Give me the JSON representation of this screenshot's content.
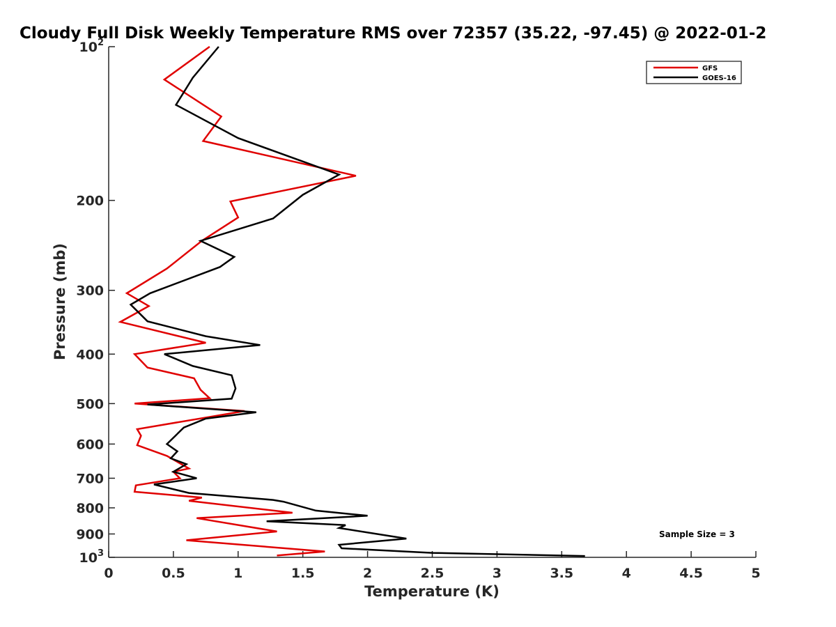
{
  "chart_data": {
    "type": "line",
    "title": "Cloudy Full Disk Weekly Temperature RMS over 72357 (35.22, -97.45) @ 2022-01-2",
    "xlabel": "Temperature (K)",
    "ylabel": "Pressure (mb)",
    "xlim": [
      0,
      5
    ],
    "ylim": [
      100,
      1000
    ],
    "y_scale": "log",
    "y_reversed": true,
    "x_ticks": [
      0,
      0.5,
      1,
      1.5,
      2,
      2.5,
      3,
      3.5,
      4,
      4.5,
      5
    ],
    "x_tick_labels": [
      "0",
      "0.5",
      "1",
      "1.5",
      "2",
      "2.5",
      "3",
      "3.5",
      "4",
      "4.5",
      "5"
    ],
    "y_ticks": [
      {
        "value": 100,
        "base": "10",
        "exp": "2"
      },
      {
        "value": 200,
        "base": "200",
        "exp": ""
      },
      {
        "value": 300,
        "base": "300",
        "exp": ""
      },
      {
        "value": 400,
        "base": "400",
        "exp": ""
      },
      {
        "value": 500,
        "base": "500",
        "exp": ""
      },
      {
        "value": 600,
        "base": "600",
        "exp": ""
      },
      {
        "value": 700,
        "base": "700",
        "exp": ""
      },
      {
        "value": 800,
        "base": "800",
        "exp": ""
      },
      {
        "value": 900,
        "base": "900",
        "exp": ""
      },
      {
        "value": 1000,
        "base": "10",
        "exp": "3"
      }
    ],
    "grid": false,
    "legend_position": "top-right",
    "annotation": "Sample Size = 3",
    "series": [
      {
        "name": "GFS",
        "color": "#e00000",
        "points": [
          [
            0.78,
            100
          ],
          [
            0.43,
            116
          ],
          [
            0.87,
            137
          ],
          [
            0.73,
            153
          ],
          [
            1.91,
            179
          ],
          [
            0.94,
            201
          ],
          [
            1.0,
            216
          ],
          [
            0.72,
            240
          ],
          [
            0.45,
            272
          ],
          [
            0.14,
            304
          ],
          [
            0.31,
            322
          ],
          [
            0.09,
            346
          ],
          [
            0.75,
            380
          ],
          [
            0.2,
            400
          ],
          [
            0.3,
            425
          ],
          [
            0.66,
            446
          ],
          [
            0.71,
            470
          ],
          [
            0.78,
            488
          ],
          [
            0.2,
            500
          ],
          [
            1.05,
            517
          ],
          [
            0.22,
            561
          ],
          [
            0.25,
            578
          ],
          [
            0.22,
            603
          ],
          [
            0.45,
            633
          ],
          [
            0.62,
            670
          ],
          [
            0.5,
            680
          ],
          [
            0.55,
            700
          ],
          [
            0.21,
            723
          ],
          [
            0.2,
            744
          ],
          [
            0.72,
            764
          ],
          [
            0.62,
            775
          ],
          [
            1.42,
            818
          ],
          [
            0.68,
            838
          ],
          [
            1.3,
            890
          ],
          [
            0.6,
            926
          ],
          [
            1.67,
            974
          ],
          [
            1.3,
            992
          ]
        ]
      },
      {
        "name": "GOES-16",
        "color": "#000000",
        "points": [
          [
            0.85,
            100
          ],
          [
            0.65,
            115
          ],
          [
            0.52,
            130
          ],
          [
            1.0,
            151
          ],
          [
            1.78,
            178
          ],
          [
            1.5,
            195
          ],
          [
            1.27,
            217
          ],
          [
            0.71,
            240
          ],
          [
            0.97,
            258
          ],
          [
            0.86,
            270
          ],
          [
            0.32,
            304
          ],
          [
            0.17,
            320
          ],
          [
            0.3,
            345
          ],
          [
            0.75,
            369
          ],
          [
            1.17,
            384
          ],
          [
            0.43,
            400
          ],
          [
            0.65,
            422
          ],
          [
            0.95,
            440
          ],
          [
            0.98,
            467
          ],
          [
            0.95,
            489
          ],
          [
            0.3,
            502
          ],
          [
            1.14,
            520
          ],
          [
            0.75,
            535
          ],
          [
            0.58,
            557
          ],
          [
            0.45,
            600
          ],
          [
            0.53,
            620
          ],
          [
            0.48,
            640
          ],
          [
            0.6,
            657
          ],
          [
            0.5,
            680
          ],
          [
            0.68,
            700
          ],
          [
            0.35,
            720
          ],
          [
            0.62,
            748
          ],
          [
            1.27,
            772
          ],
          [
            1.35,
            778
          ],
          [
            1.6,
            810
          ],
          [
            2.0,
            829
          ],
          [
            1.22,
            850
          ],
          [
            1.83,
            865
          ],
          [
            1.78,
            876
          ],
          [
            2.3,
            919
          ],
          [
            1.78,
            945
          ],
          [
            1.8,
            960
          ],
          [
            2.5,
            980
          ],
          [
            3.68,
            994
          ]
        ]
      }
    ]
  }
}
